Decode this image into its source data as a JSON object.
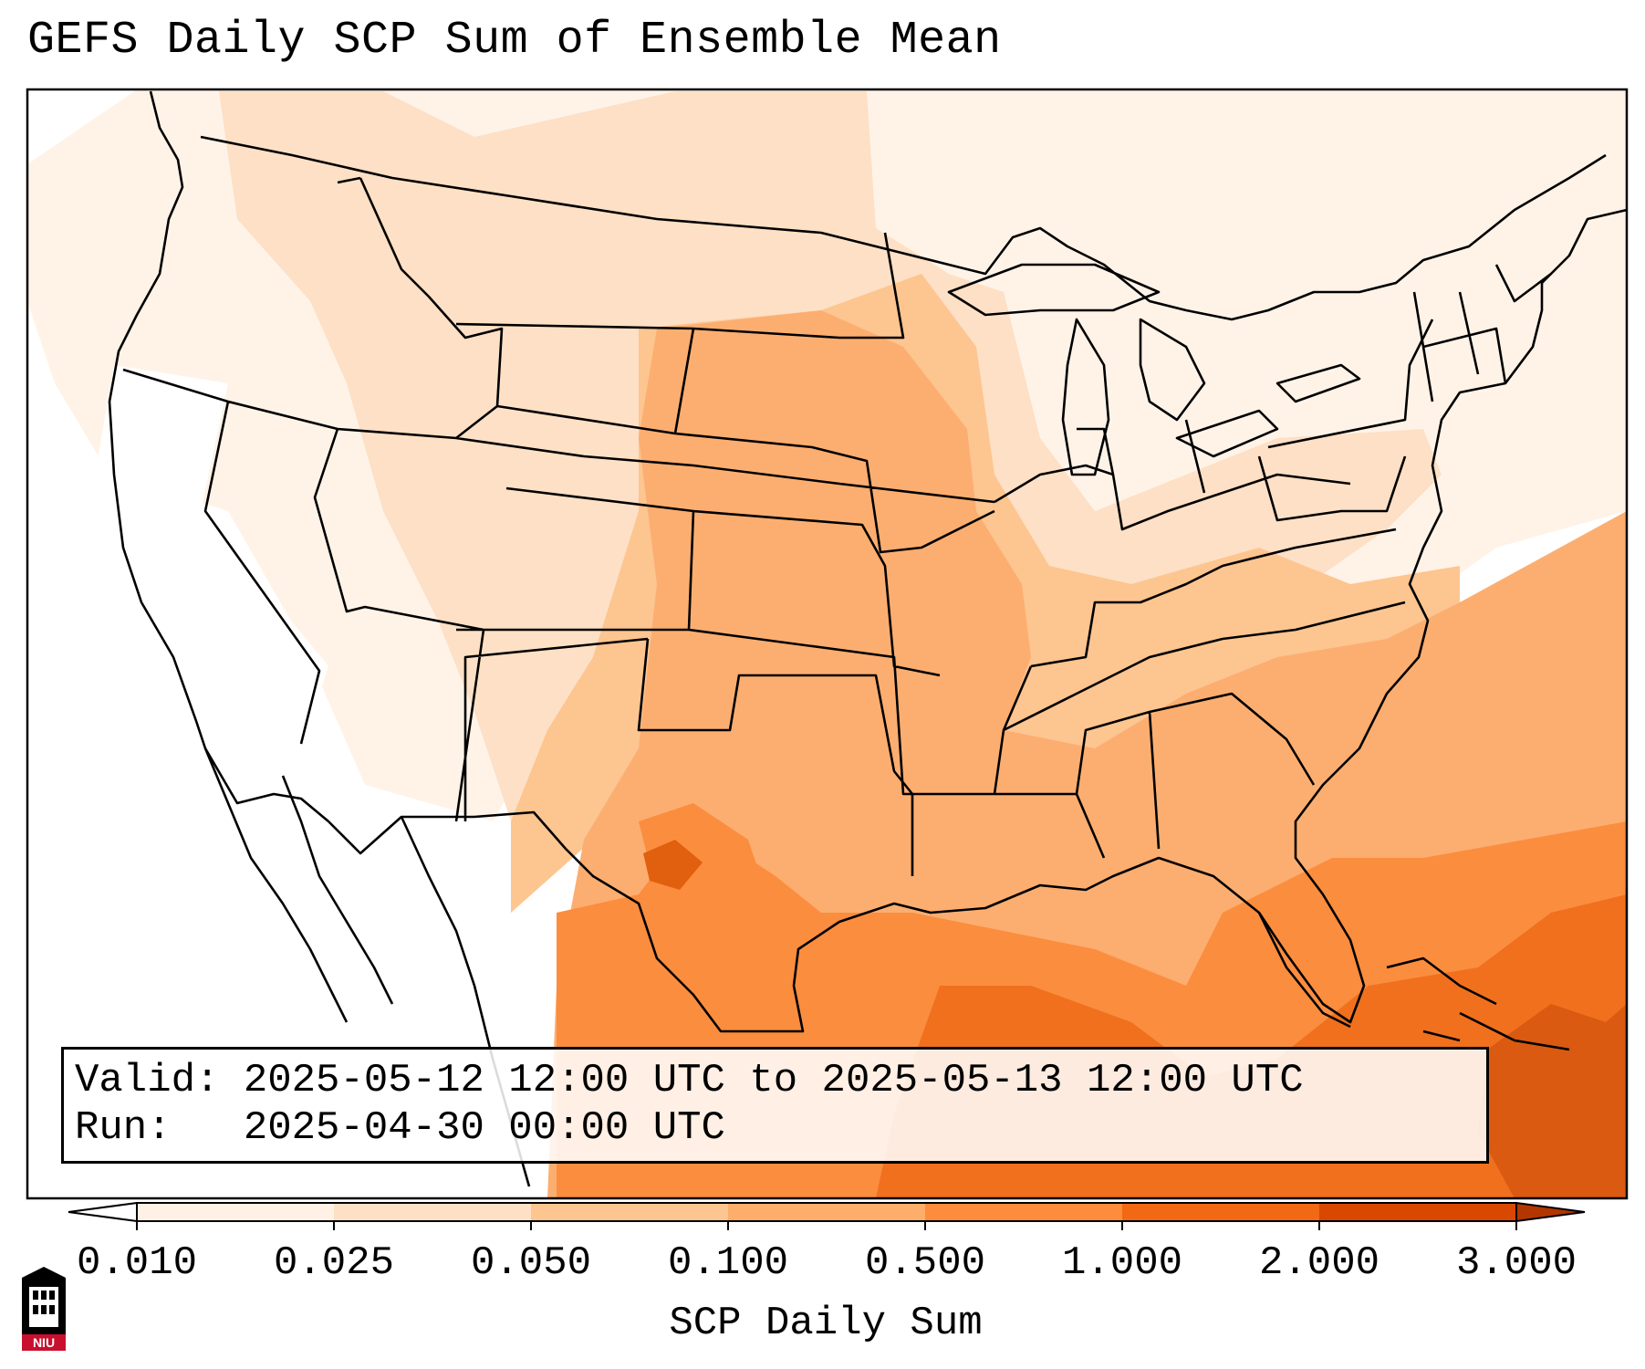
{
  "title": "GEFS Daily SCP Sum of Ensemble Mean",
  "info": {
    "valid_label": "Valid:",
    "valid_value": "2025-05-12 12:00 UTC to 2025-05-13 12:00 UTC",
    "run_label": "Run:",
    "run_value": "2025-04-30 00:00 UTC"
  },
  "colorbar": {
    "label": "SCP Daily Sum",
    "ticks": [
      "0.010",
      "0.025",
      "0.050",
      "0.100",
      "0.500",
      "1.000",
      "2.000",
      "3.000"
    ],
    "colors": [
      "#fff1e6",
      "#fde0c5",
      "#fdc590",
      "#fdae6b",
      "#fd8d3c",
      "#f16913",
      "#d94801",
      "#b33600"
    ],
    "extend": "both"
  },
  "map": {
    "projection": "Lambert Conformal (CONUS)",
    "field_colors": {
      "none": "#ffffff",
      "very_light": "#fff3e8",
      "light": "#fde0c5",
      "medium": "#fdc590",
      "orange": "#fcae70",
      "dark": "#fb8d3f",
      "darker": "#f0701e",
      "darkest": "#d95a10"
    }
  },
  "logo": {
    "text": "NIU",
    "colors": {
      "primary": "#c8102e",
      "secondary": "#000000"
    }
  }
}
